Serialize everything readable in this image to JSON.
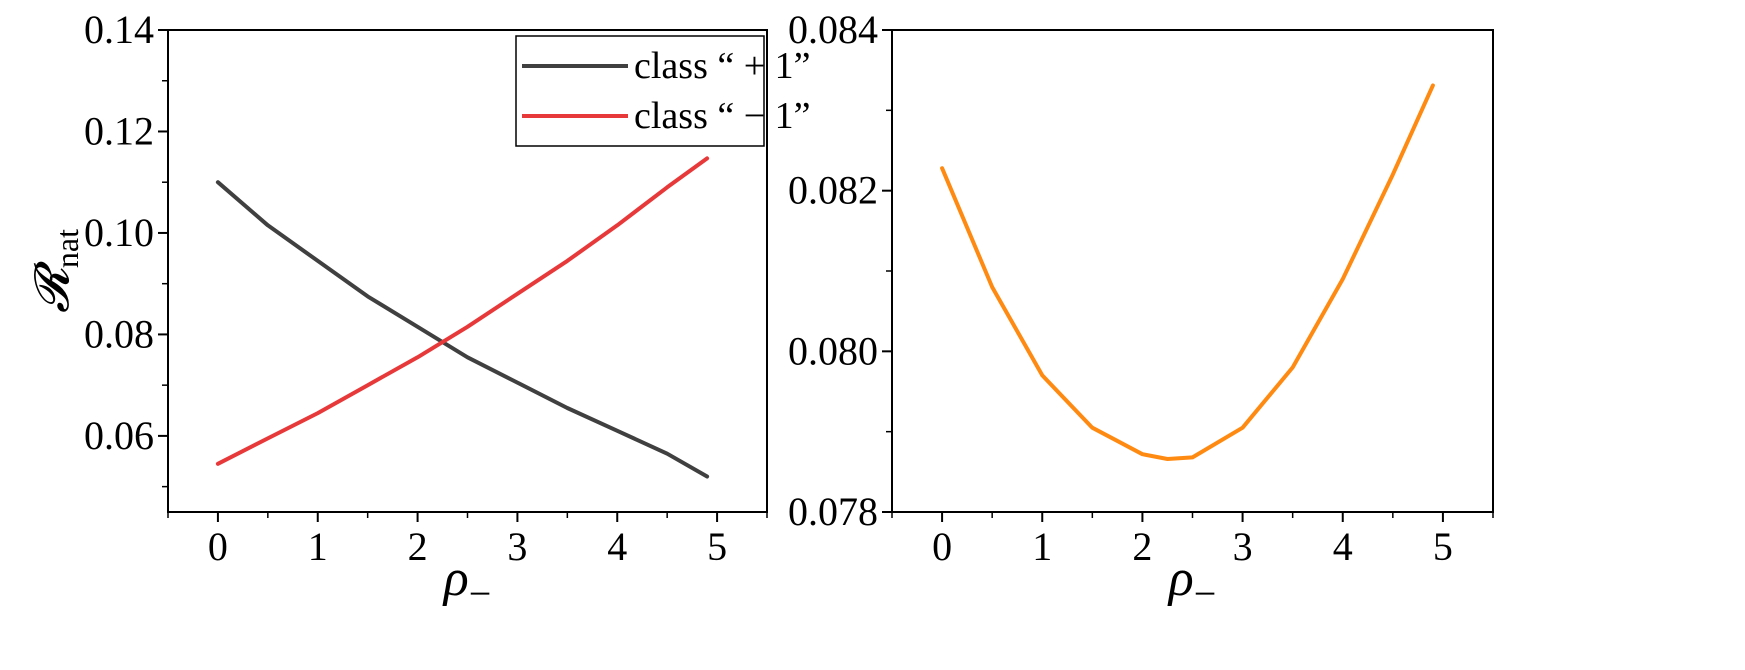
{
  "chart_data": [
    {
      "type": "line",
      "title": "",
      "xlabel": "ρ",
      "xlabel_subscript": "−",
      "ylabel": "𝓡",
      "ylabel_subscript": "nat",
      "xlim": [
        -0.5,
        5.5
      ],
      "ylim": [
        0.045,
        0.14
      ],
      "xticks": [
        0,
        1,
        2,
        3,
        4,
        5
      ],
      "xtick_labels": [
        "0",
        "1",
        "2",
        "3",
        "4",
        "5"
      ],
      "yticks": [
        0.06,
        0.08,
        0.1,
        0.12,
        0.14
      ],
      "ytick_labels": [
        "0.06",
        "0.08",
        "0.10",
        "0.12",
        "0.14"
      ],
      "grid": false,
      "legend": "top-right",
      "series": [
        {
          "name": "class “ + 1”",
          "color": "#404040",
          "x": [
            0,
            0.5,
            1,
            1.5,
            2,
            2.5,
            3,
            3.5,
            4,
            4.5,
            4.9
          ],
          "y": [
            0.11,
            0.1015,
            0.0945,
            0.0875,
            0.0815,
            0.0755,
            0.0705,
            0.0655,
            0.061,
            0.0565,
            0.052
          ]
        },
        {
          "name": "class “ − 1”",
          "color": "#e8393a",
          "x": [
            0,
            0.5,
            1,
            1.5,
            2,
            2.5,
            3,
            3.5,
            4,
            4.5,
            4.9
          ],
          "y": [
            0.0545,
            0.0595,
            0.0645,
            0.07,
            0.0755,
            0.0815,
            0.088,
            0.0945,
            0.1015,
            0.109,
            0.1147
          ]
        }
      ]
    },
    {
      "type": "line",
      "title": "",
      "xlabel": "ρ",
      "xlabel_subscript": "−",
      "ylabel": "",
      "xlim": [
        -0.5,
        5.5
      ],
      "ylim": [
        0.078,
        0.084
      ],
      "xticks": [
        0,
        1,
        2,
        3,
        4,
        5
      ],
      "xtick_labels": [
        "0",
        "1",
        "2",
        "3",
        "4",
        "5"
      ],
      "yticks": [
        0.078,
        0.08,
        0.082,
        0.084
      ],
      "ytick_labels": [
        "0.078",
        "0.080",
        "0.082",
        "0.084"
      ],
      "grid": false,
      "series": [
        {
          "color": "#ff8a12",
          "x": [
            0,
            0.5,
            1,
            1.5,
            2,
            2.25,
            2.5,
            3,
            3.5,
            4,
            4.5,
            4.9
          ],
          "y": [
            0.08228,
            0.0808,
            0.0797,
            0.07905,
            0.07872,
            0.07866,
            0.07868,
            0.07905,
            0.0798,
            0.0809,
            0.0822,
            0.08331
          ]
        }
      ]
    }
  ]
}
